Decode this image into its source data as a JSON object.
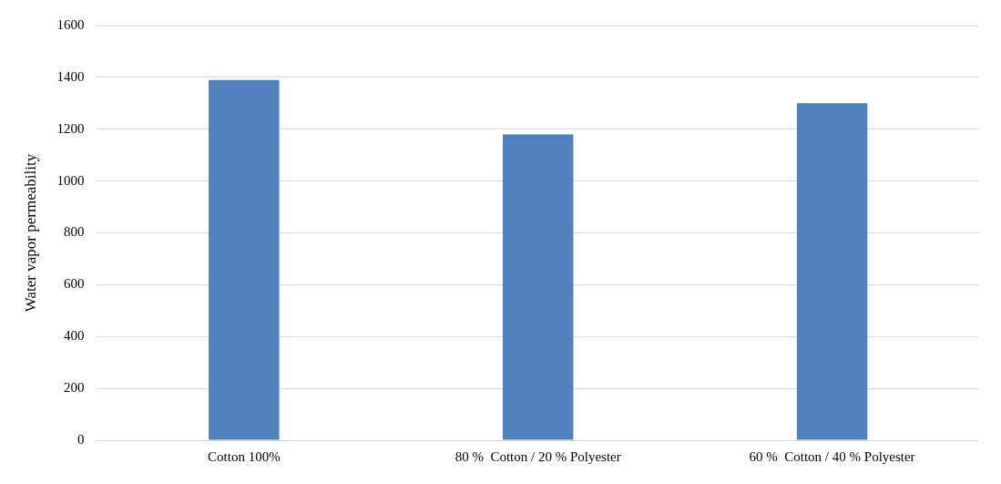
{
  "chart_data": {
    "type": "bar",
    "ylabel": "Water vapor permeability",
    "categories": [
      "Cotton 100%",
      "80 %  Cotton / 20 % Polyester",
      "60 %  Cotton / 40 % Polyester"
    ],
    "values": [
      1390,
      1180,
      1300
    ],
    "color": "#4f81bd",
    "ylim": [
      0,
      1600
    ],
    "yticks": [
      0,
      200,
      400,
      600,
      800,
      1000,
      1200,
      1400,
      1600
    ],
    "grid": "y",
    "legend": false
  }
}
